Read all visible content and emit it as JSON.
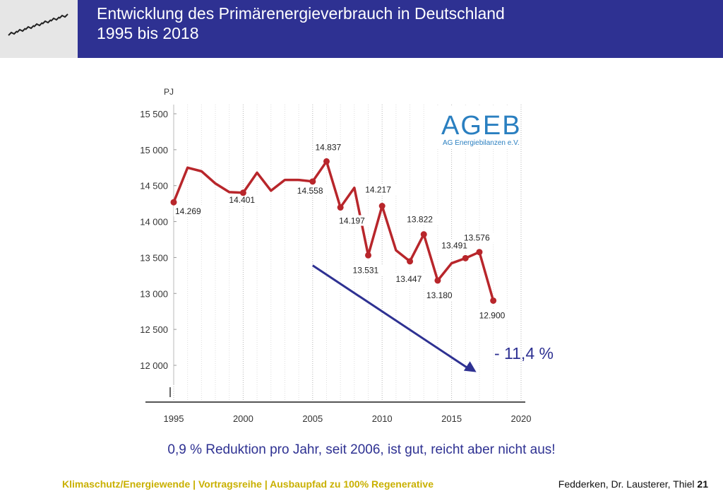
{
  "header": {
    "title_line1": "Entwicklung des Primärenergieverbrauch in Deutschland",
    "title_line2": "1995 bis 2018"
  },
  "logo": {
    "icon": "decorative-logo-icon"
  },
  "chart_data": {
    "type": "line",
    "unit": "PJ",
    "x": [
      1995,
      1996,
      1997,
      1998,
      1999,
      2000,
      2001,
      2002,
      2003,
      2004,
      2005,
      2006,
      2007,
      2008,
      2009,
      2010,
      2011,
      2012,
      2013,
      2014,
      2015,
      2016,
      2017,
      2018
    ],
    "y": [
      14269,
      14750,
      14700,
      14530,
      14410,
      14401,
      14680,
      14430,
      14580,
      14580,
      14558,
      14837,
      14197,
      14470,
      13531,
      14217,
      13600,
      13447,
      13822,
      13180,
      13420,
      13491,
      13576,
      12900
    ],
    "highlighted_points": [
      {
        "x": 1995,
        "y": 14269,
        "label": "14.269"
      },
      {
        "x": 2000,
        "y": 14401,
        "label": "14.401"
      },
      {
        "x": 2005,
        "y": 14558,
        "label": "14.558"
      },
      {
        "x": 2006,
        "y": 14837,
        "label": "14.837"
      },
      {
        "x": 2007,
        "y": 14197,
        "label": "14.197"
      },
      {
        "x": 2009,
        "y": 13531,
        "label": "13.531"
      },
      {
        "x": 2010,
        "y": 14217,
        "label": "14.217"
      },
      {
        "x": 2012,
        "y": 13447,
        "label": "13.447"
      },
      {
        "x": 2013,
        "y": 13822,
        "label": "13.822"
      },
      {
        "x": 2014,
        "y": 13180,
        "label": "13.180"
      },
      {
        "x": 2016,
        "y": 13491,
        "label": "13.491"
      },
      {
        "x": 2017,
        "y": 13576,
        "label": "13.576"
      },
      {
        "x": 2018,
        "y": 12900,
        "label": "12.900"
      }
    ],
    "yticks": [
      {
        "value": 15500,
        "label": "15 500"
      },
      {
        "value": 15000,
        "label": "15 000"
      },
      {
        "value": 14500,
        "label": "14 500"
      },
      {
        "value": 14000,
        "label": "14 000"
      },
      {
        "value": 13500,
        "label": "13 500"
      },
      {
        "value": 13000,
        "label": "13 000"
      },
      {
        "value": 12500,
        "label": "12 500"
      },
      {
        "value": 12000,
        "label": "12 000"
      }
    ],
    "xticks": [
      {
        "value": 1995,
        "label": "1995"
      },
      {
        "value": 2000,
        "label": "2000"
      },
      {
        "value": 2005,
        "label": "2005"
      },
      {
        "value": 2010,
        "label": "2010"
      },
      {
        "value": 2015,
        "label": "2015"
      },
      {
        "value": 2020,
        "label": "2020"
      }
    ],
    "ylim": [
      11700,
      15700
    ],
    "xlim": [
      1995,
      2020
    ],
    "grid": "vertical dotted",
    "line_color": "#b8262b",
    "source_logo": {
      "main": "AGEB",
      "sub": "AG Energiebilanzen e.V.",
      "color": "#2a7fc0"
    },
    "trend_arrow": {
      "from_x": 2005,
      "from_y": 13390,
      "to_x": 2018,
      "to_y": 12200,
      "color": "#2e3192"
    }
  },
  "annotation": {
    "text": "- 11,4 %"
  },
  "caption": "0,9 % Reduktion pro Jahr, seit 2006, ist gut, reicht aber nicht aus!",
  "footer": {
    "left": "Klimaschutz/Energiewende | Vortragsreihe | Ausbaupfad zu 100% Regenerative",
    "right": "Fedderken, Dr. Lausterer, Thiel",
    "page": "21"
  }
}
